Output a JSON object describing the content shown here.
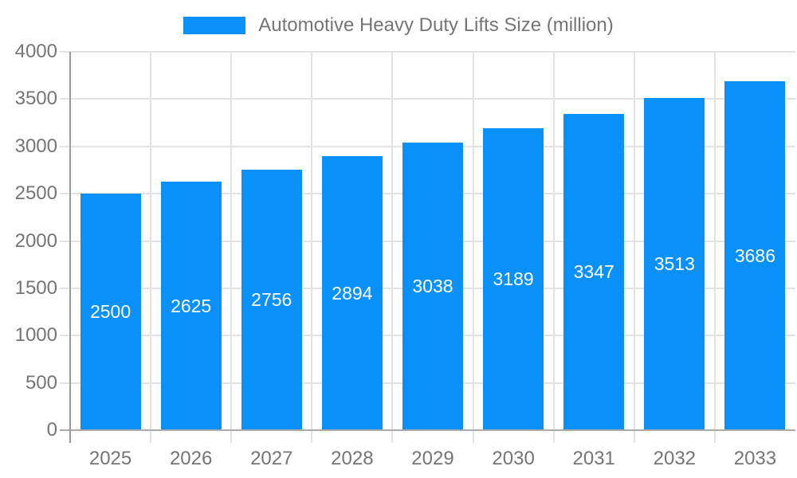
{
  "legend": {
    "label": "Automotive Heavy Duty Lifts Size (million)"
  },
  "chart_data": {
    "type": "bar",
    "title": "",
    "series_name": "Automotive Heavy Duty Lifts Size (million)",
    "categories": [
      "2025",
      "2026",
      "2027",
      "2028",
      "2029",
      "2030",
      "2031",
      "2032",
      "2033"
    ],
    "values": [
      2500,
      2625,
      2756,
      2894,
      3038,
      3189,
      3347,
      3513,
      3686
    ],
    "bar_labels": [
      "2500",
      "2625",
      "2756",
      "2894",
      "3038",
      "3189",
      "3347",
      "3513",
      "3686"
    ],
    "xlabel": "",
    "ylabel": "",
    "ylim": [
      0,
      4000
    ],
    "ytick_step": 500,
    "yticks": [
      "0",
      "500",
      "1000",
      "1500",
      "2000",
      "2500",
      "3000",
      "3500",
      "4000"
    ],
    "grid": true,
    "legend_position": "top",
    "colors": {
      "bar": "#0990f9",
      "bar_label": "#ffffff",
      "axis_line": "#9a9a9a",
      "baseline": "#ababab",
      "gridline": "#e3e3e3",
      "tick_text": "#757575",
      "legend_text": "#757575",
      "background": "#ffffff"
    }
  }
}
